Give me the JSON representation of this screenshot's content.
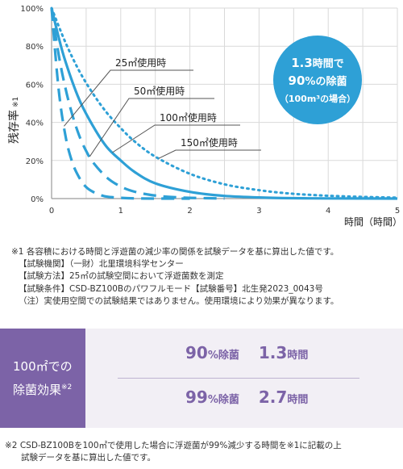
{
  "chart_data": {
    "type": "line",
    "ylabel": "残存率",
    "ylabel_note": "※1",
    "xlabel": "時間（時間）",
    "xlim": [
      0,
      5
    ],
    "ylim": [
      0,
      100
    ],
    "x_ticks": [
      "0",
      "1",
      "2",
      "3",
      "4",
      "5"
    ],
    "y_ticks": [
      "0%",
      "20%",
      "40%",
      "60%",
      "80%",
      "100%"
    ],
    "grid": true,
    "series": [
      {
        "name": "25㎡使用時",
        "style": "dashed",
        "x": [
          0,
          0.1,
          0.2,
          0.3,
          0.4,
          0.5,
          0.6,
          0.7,
          0.8,
          1.0,
          1.2,
          1.5,
          2.0
        ],
        "y": [
          100,
          58,
          33,
          19,
          11,
          6,
          3.5,
          2,
          1,
          0.4,
          0.1,
          0,
          0
        ]
      },
      {
        "name": "50㎡使用時",
        "style": "dashed",
        "x": [
          0,
          0.1,
          0.2,
          0.3,
          0.4,
          0.5,
          0.6,
          0.8,
          1.0,
          1.2,
          1.4,
          1.6,
          1.8,
          2.0,
          2.5
        ],
        "y": [
          100,
          76,
          58,
          44,
          33,
          25,
          19,
          11,
          6.3,
          3.6,
          2.1,
          1.2,
          0.7,
          0.4,
          0
        ]
      },
      {
        "name": "100㎡使用時",
        "style": "solid",
        "x": [
          0,
          0.1,
          0.2,
          0.4,
          0.6,
          0.8,
          1.0,
          1.2,
          1.5,
          2.0,
          2.5,
          3.0,
          3.5,
          4.0,
          5.0
        ],
        "y": [
          100,
          85,
          72,
          52,
          38,
          27,
          20,
          14,
          8,
          3.5,
          1.4,
          0.6,
          0.2,
          0.1,
          0
        ]
      },
      {
        "name": "150㎡使用時",
        "style": "dotted",
        "x": [
          0,
          0.2,
          0.4,
          0.6,
          0.8,
          1.0,
          1.2,
          1.5,
          2.0,
          2.5,
          3.0,
          3.5,
          4.0,
          4.5,
          5.0
        ],
        "y": [
          100,
          82,
          67,
          55,
          45,
          37,
          30,
          22,
          13,
          7.5,
          4.4,
          2.5,
          1.5,
          0.9,
          0.5
        ]
      }
    ],
    "colors": {
      "line": "#2ea0d6",
      "grid": "#d9d9d9",
      "axis": "#9a9a9a"
    }
  },
  "bubble": {
    "hours_value": "1.3",
    "hours_unit": "時間で",
    "rate_value": "90",
    "rate_unit": "%の除菌",
    "condition": "（100m³の場合）"
  },
  "notes": {
    "line1": "※1 各容積における時間と浮遊菌の減少率の関係を試験データを基に算出した値です。",
    "line2": "【試験機関】（一財）北里環境科学センター",
    "line3": "【試験方法】25㎡の試験空間において浮遊菌数を測定",
    "line4": "【試験条件】CSD-BZ100Bのパワフルモード【試験番号】北生発2023_0043号",
    "line5": "（注）実使用空間での試験結果ではありません。使用環境により効果が異なります。"
  },
  "effect": {
    "heading_line1": "100㎡での",
    "heading_line2": "除菌効果",
    "heading_note": "※2",
    "rows": [
      {
        "rate": "90",
        "rate_unit": "%除菌",
        "time": "1.3",
        "time_unit": "時間"
      },
      {
        "rate": "99",
        "rate_unit": "%除菌",
        "time": "2.7",
        "time_unit": "時間"
      }
    ],
    "accent": "#7c63a7"
  },
  "footnote": {
    "line1": "※2 CSD-BZ100Bを100㎡で使用した場合に浮遊菌が99%減少する時間を※1に記載の上",
    "line2": "試験データを基に算出した値です。"
  }
}
